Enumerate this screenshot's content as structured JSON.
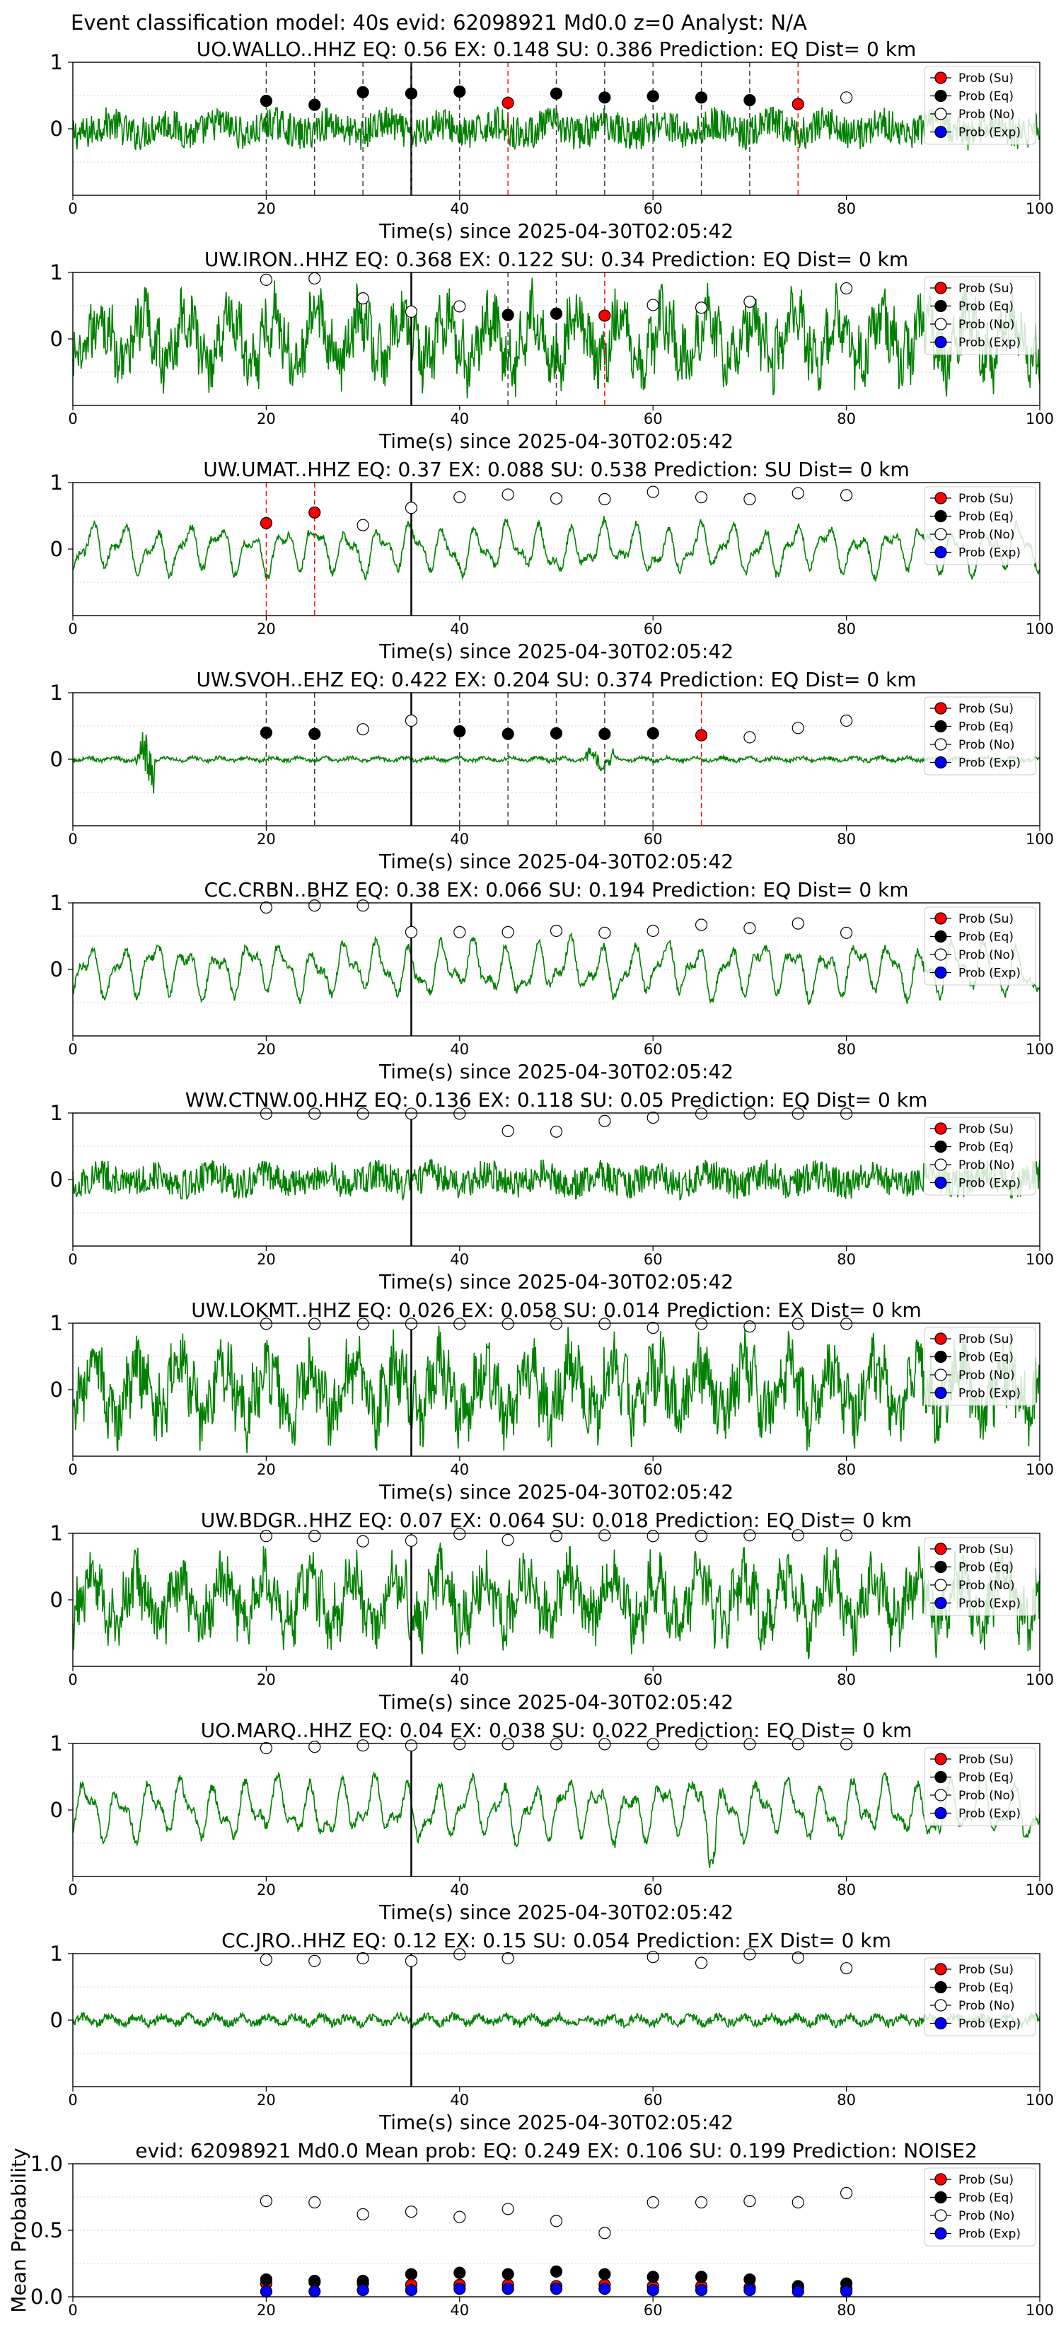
{
  "figure": {
    "suptitle": "Event classification model: 40s evid: 62098921 Md0.0 z=0 Analyst: N/A"
  },
  "legend_labels": [
    "Prob (Su)",
    "Prob (Eq)",
    "Prob (No)",
    "Prob (Exp)"
  ],
  "colors": {
    "waveform": "#008000",
    "su": "#ff0000",
    "eq": "#000000",
    "no": "#ffffff",
    "exp": "#0000ff",
    "pick_line": "#000000"
  },
  "chart_data": [
    {
      "type": "line",
      "title": "UO.WALLO..HHZ   EQ: 0.56  EX: 0.148  SU: 0.386   Prediction: EQ    Dist= 0 km",
      "xlabel": "Time(s) since 2025-04-30T02:05:42",
      "ylabel": "",
      "xlim": [
        0,
        100
      ],
      "ylim": [
        -1,
        1
      ],
      "xticks": [
        0,
        20,
        40,
        60,
        80,
        100
      ],
      "yticks": [
        0,
        1
      ],
      "grid": "horizontal-dotted",
      "legend": "right",
      "waveform": "noisy",
      "amp": 0.42,
      "pick_time": 35,
      "points": [
        {
          "x": 20,
          "y": 0.42,
          "class": "eq"
        },
        {
          "x": 25,
          "y": 0.36,
          "class": "eq"
        },
        {
          "x": 30,
          "y": 0.55,
          "class": "eq"
        },
        {
          "x": 35,
          "y": 0.53,
          "class": "eq"
        },
        {
          "x": 40,
          "y": 0.56,
          "class": "eq"
        },
        {
          "x": 45,
          "y": 0.39,
          "class": "su"
        },
        {
          "x": 50,
          "y": 0.53,
          "class": "eq"
        },
        {
          "x": 55,
          "y": 0.47,
          "class": "eq"
        },
        {
          "x": 60,
          "y": 0.49,
          "class": "eq"
        },
        {
          "x": 65,
          "y": 0.47,
          "class": "eq"
        },
        {
          "x": 70,
          "y": 0.43,
          "class": "eq"
        },
        {
          "x": 75,
          "y": 0.37,
          "class": "su"
        },
        {
          "x": 80,
          "y": 0.47,
          "class": "no"
        }
      ]
    },
    {
      "type": "line",
      "title": "UW.IRON..HHZ   EQ: 0.368  EX: 0.122  SU: 0.34   Prediction: EQ    Dist= 0 km",
      "xlabel": "Time(s) since 2025-04-30T02:05:42",
      "ylabel": "",
      "xlim": [
        0,
        100
      ],
      "ylim": [
        -1,
        1
      ],
      "xticks": [
        0,
        20,
        40,
        60,
        80,
        100
      ],
      "yticks": [
        0,
        1
      ],
      "grid": "horizontal-dotted",
      "legend": "right",
      "waveform": "noisy-large",
      "amp": 0.75,
      "pick_time": 35,
      "points": [
        {
          "x": 20,
          "y": 0.89,
          "class": "no"
        },
        {
          "x": 25,
          "y": 0.91,
          "class": "no"
        },
        {
          "x": 30,
          "y": 0.61,
          "class": "no"
        },
        {
          "x": 35,
          "y": 0.41,
          "class": "no"
        },
        {
          "x": 40,
          "y": 0.49,
          "class": "no"
        },
        {
          "x": 45,
          "y": 0.36,
          "class": "eq"
        },
        {
          "x": 50,
          "y": 0.38,
          "class": "eq"
        },
        {
          "x": 55,
          "y": 0.35,
          "class": "su"
        },
        {
          "x": 60,
          "y": 0.51,
          "class": "no"
        },
        {
          "x": 65,
          "y": 0.47,
          "class": "no"
        },
        {
          "x": 70,
          "y": 0.56,
          "class": "no"
        },
        {
          "x": 80,
          "y": 0.76,
          "class": "no"
        }
      ]
    },
    {
      "type": "line",
      "title": "UW.UMAT..HHZ   EQ: 0.37  EX: 0.088  SU: 0.538   Prediction: SU    Dist= 0 km",
      "xlabel": "Time(s) since 2025-04-30T02:05:42",
      "ylabel": "",
      "xlim": [
        0,
        100
      ],
      "ylim": [
        -1,
        1
      ],
      "xticks": [
        0,
        20,
        40,
        60,
        80,
        100
      ],
      "yticks": [
        0,
        1
      ],
      "grid": "horizontal-dotted",
      "legend": "right",
      "waveform": "smooth",
      "amp": 0.45,
      "pick_time": 35,
      "points": [
        {
          "x": 20,
          "y": 0.39,
          "class": "su"
        },
        {
          "x": 25,
          "y": 0.55,
          "class": "su"
        },
        {
          "x": 30,
          "y": 0.36,
          "class": "no"
        },
        {
          "x": 35,
          "y": 0.62,
          "class": "no"
        },
        {
          "x": 40,
          "y": 0.78,
          "class": "no"
        },
        {
          "x": 45,
          "y": 0.82,
          "class": "no"
        },
        {
          "x": 50,
          "y": 0.76,
          "class": "no"
        },
        {
          "x": 55,
          "y": 0.75,
          "class": "no"
        },
        {
          "x": 60,
          "y": 0.86,
          "class": "no"
        },
        {
          "x": 65,
          "y": 0.78,
          "class": "no"
        },
        {
          "x": 70,
          "y": 0.75,
          "class": "no"
        },
        {
          "x": 75,
          "y": 0.84,
          "class": "no"
        },
        {
          "x": 80,
          "y": 0.81,
          "class": "no"
        }
      ]
    },
    {
      "type": "line",
      "title": "UW.SVOH..EHZ   EQ: 0.422  EX: 0.204  SU: 0.374   Prediction: EQ    Dist= 0 km",
      "xlabel": "Time(s) since 2025-04-30T02:05:42",
      "ylabel": "",
      "xlim": [
        0,
        100
      ],
      "ylim": [
        -1,
        1
      ],
      "xticks": [
        0,
        20,
        40,
        60,
        80,
        100
      ],
      "yticks": [
        0,
        1
      ],
      "grid": "horizontal-dotted",
      "legend": "right",
      "waveform": "quiet",
      "amp": 0.08,
      "pick_time": 35,
      "points": [
        {
          "x": 20,
          "y": 0.4,
          "class": "eq"
        },
        {
          "x": 25,
          "y": 0.38,
          "class": "eq"
        },
        {
          "x": 30,
          "y": 0.45,
          "class": "no"
        },
        {
          "x": 35,
          "y": 0.58,
          "class": "no"
        },
        {
          "x": 40,
          "y": 0.42,
          "class": "eq"
        },
        {
          "x": 45,
          "y": 0.38,
          "class": "eq"
        },
        {
          "x": 50,
          "y": 0.39,
          "class": "eq"
        },
        {
          "x": 55,
          "y": 0.38,
          "class": "eq"
        },
        {
          "x": 60,
          "y": 0.39,
          "class": "eq"
        },
        {
          "x": 65,
          "y": 0.36,
          "class": "su"
        },
        {
          "x": 70,
          "y": 0.33,
          "class": "no"
        },
        {
          "x": 75,
          "y": 0.47,
          "class": "no"
        },
        {
          "x": 80,
          "y": 0.58,
          "class": "no"
        }
      ]
    },
    {
      "type": "line",
      "title": "CC.CRBN..BHZ   EQ: 0.38  EX: 0.066  SU: 0.194   Prediction: EQ    Dist= 0 km",
      "xlabel": "Time(s) since 2025-04-30T02:05:42",
      "ylabel": "",
      "xlim": [
        0,
        100
      ],
      "ylim": [
        -1,
        1
      ],
      "xticks": [
        0,
        20,
        40,
        60,
        80,
        100
      ],
      "yticks": [
        0,
        1
      ],
      "grid": "horizontal-dotted",
      "legend": "right",
      "waveform": "smooth",
      "amp": 0.5,
      "pick_time": 35,
      "points": [
        {
          "x": 20,
          "y": 0.93,
          "class": "no"
        },
        {
          "x": 25,
          "y": 0.96,
          "class": "no"
        },
        {
          "x": 30,
          "y": 0.96,
          "class": "no"
        },
        {
          "x": 35,
          "y": 0.56,
          "class": "no"
        },
        {
          "x": 40,
          "y": 0.56,
          "class": "no"
        },
        {
          "x": 45,
          "y": 0.56,
          "class": "no"
        },
        {
          "x": 50,
          "y": 0.58,
          "class": "no"
        },
        {
          "x": 55,
          "y": 0.55,
          "class": "no"
        },
        {
          "x": 60,
          "y": 0.58,
          "class": "no"
        },
        {
          "x": 65,
          "y": 0.67,
          "class": "no"
        },
        {
          "x": 70,
          "y": 0.62,
          "class": "no"
        },
        {
          "x": 75,
          "y": 0.69,
          "class": "no"
        },
        {
          "x": 80,
          "y": 0.55,
          "class": "no"
        }
      ]
    },
    {
      "type": "line",
      "title": "WW.CTNW.00.HHZ   EQ: 0.136  EX: 0.118  SU: 0.05   Prediction: EQ    Dist= 0 km",
      "xlabel": "Time(s) since 2025-04-30T02:05:42",
      "ylabel": "",
      "xlim": [
        0,
        100
      ],
      "ylim": [
        -1,
        1
      ],
      "xticks": [
        0,
        20,
        40,
        60,
        80,
        100
      ],
      "yticks": [
        0,
        1
      ],
      "grid": "horizontal-dotted",
      "legend": "right",
      "waveform": "noisy",
      "amp": 0.38,
      "pick_time": 35,
      "points": [
        {
          "x": 20,
          "y": 0.99,
          "class": "no"
        },
        {
          "x": 25,
          "y": 0.99,
          "class": "no"
        },
        {
          "x": 30,
          "y": 0.99,
          "class": "no"
        },
        {
          "x": 35,
          "y": 0.99,
          "class": "no"
        },
        {
          "x": 40,
          "y": 0.99,
          "class": "no"
        },
        {
          "x": 45,
          "y": 0.73,
          "class": "no"
        },
        {
          "x": 50,
          "y": 0.72,
          "class": "no"
        },
        {
          "x": 55,
          "y": 0.88,
          "class": "no"
        },
        {
          "x": 60,
          "y": 0.93,
          "class": "no"
        },
        {
          "x": 65,
          "y": 0.99,
          "class": "no"
        },
        {
          "x": 70,
          "y": 0.99,
          "class": "no"
        },
        {
          "x": 75,
          "y": 0.99,
          "class": "no"
        },
        {
          "x": 80,
          "y": 0.99,
          "class": "no"
        }
      ]
    },
    {
      "type": "line",
      "title": "UW.LOKMT..HHZ   EQ: 0.026  EX: 0.058  SU: 0.014   Prediction: EX    Dist= 0 km",
      "xlabel": "Time(s) since 2025-04-30T02:05:42",
      "ylabel": "",
      "xlim": [
        0,
        100
      ],
      "ylim": [
        -1,
        1
      ],
      "xticks": [
        0,
        20,
        40,
        60,
        80,
        100
      ],
      "yticks": [
        0,
        1
      ],
      "grid": "horizontal-dotted",
      "legend": "right",
      "waveform": "noisy-large",
      "amp": 0.8,
      "pick_time": 35,
      "points": [
        {
          "x": 20,
          "y": 0.99,
          "class": "no"
        },
        {
          "x": 25,
          "y": 0.99,
          "class": "no"
        },
        {
          "x": 30,
          "y": 0.99,
          "class": "no"
        },
        {
          "x": 35,
          "y": 0.99,
          "class": "no"
        },
        {
          "x": 40,
          "y": 0.99,
          "class": "no"
        },
        {
          "x": 45,
          "y": 0.99,
          "class": "no"
        },
        {
          "x": 50,
          "y": 0.99,
          "class": "no"
        },
        {
          "x": 55,
          "y": 0.99,
          "class": "no"
        },
        {
          "x": 60,
          "y": 0.93,
          "class": "no"
        },
        {
          "x": 65,
          "y": 0.99,
          "class": "no"
        },
        {
          "x": 70,
          "y": 0.95,
          "class": "no"
        },
        {
          "x": 75,
          "y": 0.99,
          "class": "no"
        },
        {
          "x": 80,
          "y": 0.99,
          "class": "no"
        }
      ]
    },
    {
      "type": "line",
      "title": "UW.BDGR..HHZ   EQ: 0.07  EX: 0.064  SU: 0.018   Prediction: EQ    Dist= 0 km",
      "xlabel": "Time(s) since 2025-04-30T02:05:42",
      "ylabel": "",
      "xlim": [
        0,
        100
      ],
      "ylim": [
        -1,
        1
      ],
      "xticks": [
        0,
        20,
        40,
        60,
        80,
        100
      ],
      "yticks": [
        0,
        1
      ],
      "grid": "horizontal-dotted",
      "legend": "right",
      "waveform": "noisy-large",
      "amp": 0.72,
      "pick_time": 35,
      "points": [
        {
          "x": 20,
          "y": 0.96,
          "class": "no"
        },
        {
          "x": 25,
          "y": 0.96,
          "class": "no"
        },
        {
          "x": 30,
          "y": 0.88,
          "class": "no"
        },
        {
          "x": 35,
          "y": 0.89,
          "class": "no"
        },
        {
          "x": 40,
          "y": 0.99,
          "class": "no"
        },
        {
          "x": 45,
          "y": 0.9,
          "class": "no"
        },
        {
          "x": 50,
          "y": 0.96,
          "class": "no"
        },
        {
          "x": 55,
          "y": 0.97,
          "class": "no"
        },
        {
          "x": 60,
          "y": 0.96,
          "class": "no"
        },
        {
          "x": 65,
          "y": 0.96,
          "class": "no"
        },
        {
          "x": 70,
          "y": 0.97,
          "class": "no"
        },
        {
          "x": 75,
          "y": 0.97,
          "class": "no"
        },
        {
          "x": 80,
          "y": 0.97,
          "class": "no"
        }
      ]
    },
    {
      "type": "line",
      "title": "UO.MARQ..HHZ   EQ: 0.04  EX: 0.038  SU: 0.022   Prediction: EQ    Dist= 0 km",
      "xlabel": "Time(s) since 2025-04-30T02:05:42",
      "ylabel": "",
      "xlim": [
        0,
        100
      ],
      "ylim": [
        -1,
        1
      ],
      "xticks": [
        0,
        20,
        40,
        60,
        80,
        100
      ],
      "yticks": [
        0,
        1
      ],
      "grid": "horizontal-dotted",
      "legend": "right",
      "waveform": "smooth",
      "amp": 0.55,
      "pick_time": 35,
      "points": [
        {
          "x": 20,
          "y": 0.93,
          "class": "no"
        },
        {
          "x": 25,
          "y": 0.95,
          "class": "no"
        },
        {
          "x": 30,
          "y": 0.97,
          "class": "no"
        },
        {
          "x": 35,
          "y": 0.97,
          "class": "no"
        },
        {
          "x": 40,
          "y": 0.99,
          "class": "no"
        },
        {
          "x": 45,
          "y": 0.99,
          "class": "no"
        },
        {
          "x": 50,
          "y": 0.99,
          "class": "no"
        },
        {
          "x": 55,
          "y": 0.99,
          "class": "no"
        },
        {
          "x": 60,
          "y": 0.99,
          "class": "no"
        },
        {
          "x": 65,
          "y": 0.99,
          "class": "no"
        },
        {
          "x": 70,
          "y": 0.99,
          "class": "no"
        },
        {
          "x": 75,
          "y": 0.99,
          "class": "no"
        },
        {
          "x": 80,
          "y": 0.99,
          "class": "no"
        }
      ]
    },
    {
      "type": "line",
      "title": "CC.JRO..HHZ   EQ: 0.12  EX: 0.15  SU: 0.054   Prediction: EX    Dist= 0 km",
      "xlabel": "Time(s) since 2025-04-30T02:05:42",
      "ylabel": "",
      "xlim": [
        0,
        100
      ],
      "ylim": [
        -1,
        1
      ],
      "xticks": [
        0,
        20,
        40,
        60,
        80,
        100
      ],
      "yticks": [
        0,
        1
      ],
      "grid": "horizontal-dotted",
      "legend": "right",
      "waveform": "quiet",
      "amp": 0.18,
      "pick_time": 35,
      "points": [
        {
          "x": 20,
          "y": 0.91,
          "class": "no"
        },
        {
          "x": 25,
          "y": 0.89,
          "class": "no"
        },
        {
          "x": 30,
          "y": 0.93,
          "class": "no"
        },
        {
          "x": 35,
          "y": 0.89,
          "class": "no"
        },
        {
          "x": 40,
          "y": 0.99,
          "class": "no"
        },
        {
          "x": 45,
          "y": 0.93,
          "class": "no"
        },
        {
          "x": 60,
          "y": 0.95,
          "class": "no"
        },
        {
          "x": 65,
          "y": 0.86,
          "class": "no"
        },
        {
          "x": 70,
          "y": 0.99,
          "class": "no"
        },
        {
          "x": 75,
          "y": 0.94,
          "class": "no"
        },
        {
          "x": 80,
          "y": 0.78,
          "class": "no"
        }
      ]
    },
    {
      "type": "scatter",
      "title": "evid: 62098921  Md0.0   Mean prob:   EQ: 0.249  EX: 0.106  SU: 0.199   Prediction: NOISE2",
      "xlabel": "",
      "ylabel": "Mean Probability",
      "xlim": [
        0,
        100
      ],
      "ylim": [
        0,
        1
      ],
      "xticks": [
        0,
        20,
        40,
        60,
        80,
        100
      ],
      "yticks": [
        0.0,
        0.5,
        1.0
      ],
      "grid": "horizontal-dotted",
      "legend": "right",
      "x": [
        20,
        25,
        30,
        35,
        40,
        45,
        50,
        55,
        60,
        65,
        70,
        75,
        80
      ],
      "series": [
        {
          "name": "Prob (Su)",
          "class": "su",
          "values": [
            0.1,
            0.11,
            0.1,
            0.09,
            0.09,
            0.09,
            0.08,
            0.09,
            0.08,
            0.08,
            0.07,
            0.07,
            0.06
          ]
        },
        {
          "name": "Prob (Eq)",
          "class": "eq",
          "values": [
            0.13,
            0.12,
            0.12,
            0.17,
            0.18,
            0.17,
            0.19,
            0.17,
            0.15,
            0.15,
            0.13,
            0.08,
            0.1
          ]
        },
        {
          "name": "Prob (No)",
          "class": "no",
          "values": [
            0.72,
            0.71,
            0.62,
            0.64,
            0.6,
            0.66,
            0.57,
            0.48,
            0.71,
            0.71,
            0.72,
            0.71,
            0.78
          ]
        },
        {
          "name": "Prob (Exp)",
          "class": "exp",
          "values": [
            0.04,
            0.04,
            0.05,
            0.05,
            0.06,
            0.06,
            0.06,
            0.06,
            0.05,
            0.05,
            0.05,
            0.04,
            0.04
          ]
        }
      ]
    }
  ]
}
